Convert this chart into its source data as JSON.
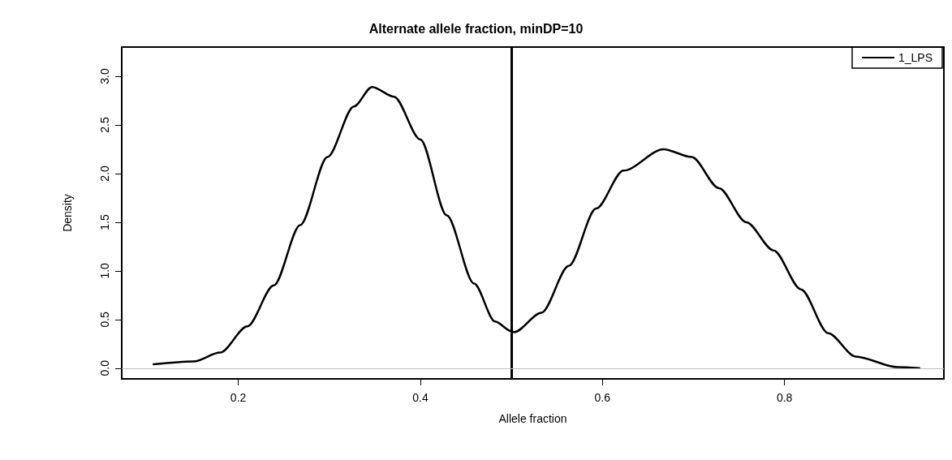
{
  "chart_data": {
    "type": "line",
    "title": "Alternate allele fraction, minDP=10",
    "xlabel": "Allele fraction",
    "ylabel": "Density",
    "x": [
      0.107,
      0.151,
      0.18,
      0.21,
      0.239,
      0.268,
      0.298,
      0.327,
      0.347,
      0.371,
      0.4,
      0.429,
      0.459,
      0.482,
      0.5,
      0.503,
      0.533,
      0.563,
      0.593,
      0.623,
      0.667,
      0.698,
      0.728,
      0.758,
      0.788,
      0.818,
      0.848,
      0.878,
      0.924,
      0.948
    ],
    "series": [
      {
        "name": "1_LPS",
        "color": "#000000",
        "values": [
          0.04,
          0.07,
          0.16,
          0.43,
          0.85,
          1.47,
          2.17,
          2.69,
          2.89,
          2.79,
          2.35,
          1.57,
          0.87,
          0.48,
          0.38,
          0.37,
          0.57,
          1.05,
          1.64,
          2.03,
          2.25,
          2.17,
          1.85,
          1.5,
          1.21,
          0.81,
          0.36,
          0.12,
          0.01,
          0
        ]
      }
    ],
    "xlim": [
      0.072,
      0.975
    ],
    "xticks": [
      0.2,
      0.4,
      0.6,
      0.8
    ],
    "ylim": [
      -0.11,
      3.3
    ],
    "yticks": [
      {
        "value": 0,
        "label": "0.0"
      },
      {
        "value": 0.5,
        "label": "0.5"
      },
      {
        "value": 1,
        "label": "1.0"
      },
      {
        "value": 1.5,
        "label": "1.5"
      },
      {
        "value": 2,
        "label": "2.0"
      },
      {
        "value": 2.5,
        "label": "2.5"
      },
      {
        "value": 3,
        "label": "3.0"
      }
    ],
    "ref_lines": [
      {
        "axis": "x",
        "value": 0.5,
        "color": "#000000",
        "line_style": "solid"
      },
      {
        "axis": "y",
        "value": 0,
        "color": "#bebebe",
        "line_style": "solid"
      }
    ],
    "legend": "top right",
    "marker": "none",
    "line_style": "solid",
    "grid": false
  }
}
